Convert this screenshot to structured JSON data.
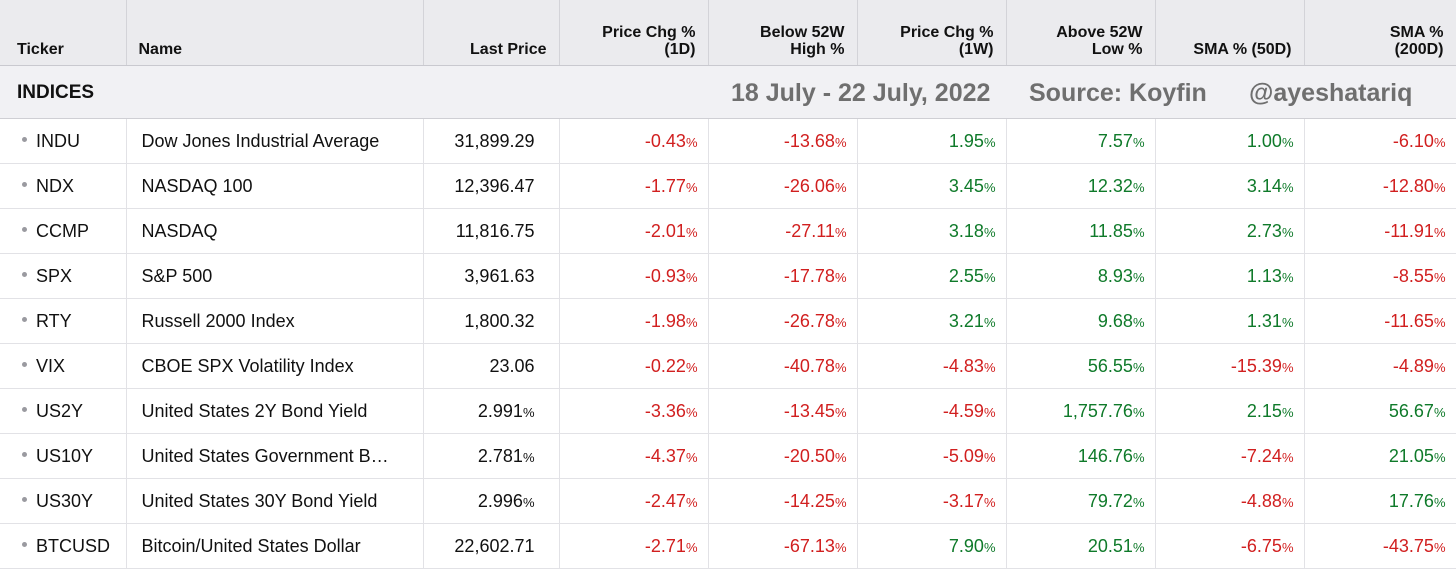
{
  "columns": [
    {
      "label": "Ticker",
      "align": "left"
    },
    {
      "label": "Name",
      "align": "left"
    },
    {
      "label": "Last Price",
      "align": "right"
    },
    {
      "label": "Price Chg %\n(1D)",
      "align": "right"
    },
    {
      "label": "Below 52W\nHigh %",
      "align": "right"
    },
    {
      "label": "Price Chg %\n(1W)",
      "align": "right"
    },
    {
      "label": "Above 52W\nLow %",
      "align": "right"
    },
    {
      "label": "SMA % (50D)",
      "align": "right"
    },
    {
      "label": "SMA %\n(200D)",
      "align": "right"
    }
  ],
  "section": {
    "title": "INDICES",
    "date_range": "18 July - 22 July, 2022",
    "source": "Source: Koyfin",
    "handle": "@ayeshatariq"
  },
  "colors": {
    "negative": "#d11f1f",
    "positive": "#0f7a2a"
  },
  "rows": [
    {
      "ticker": "INDU",
      "name": "Dow Jones Industrial Average",
      "price": "31,899.29",
      "price_unit": "",
      "values": [
        "-0.43",
        "-13.68",
        "1.95",
        "7.57",
        "1.00",
        "-6.10"
      ]
    },
    {
      "ticker": "NDX",
      "name": "NASDAQ 100",
      "price": "12,396.47",
      "price_unit": "",
      "values": [
        "-1.77",
        "-26.06",
        "3.45",
        "12.32",
        "3.14",
        "-12.80"
      ]
    },
    {
      "ticker": "CCMP",
      "name": "NASDAQ",
      "price": "11,816.75",
      "price_unit": "",
      "values": [
        "-2.01",
        "-27.11",
        "3.18",
        "11.85",
        "2.73",
        "-11.91"
      ]
    },
    {
      "ticker": "SPX",
      "name": "S&P 500",
      "price": "3,961.63",
      "price_unit": "",
      "values": [
        "-0.93",
        "-17.78",
        "2.55",
        "8.93",
        "1.13",
        "-8.55"
      ]
    },
    {
      "ticker": "RTY",
      "name": "Russell 2000 Index",
      "price": "1,800.32",
      "price_unit": "",
      "values": [
        "-1.98",
        "-26.78",
        "3.21",
        "9.68",
        "1.31",
        "-11.65"
      ]
    },
    {
      "ticker": "VIX",
      "name": "CBOE SPX Volatility Index",
      "price": "23.06",
      "price_unit": "",
      "values": [
        "-0.22",
        "-40.78",
        "-4.83",
        "56.55",
        "-15.39",
        "-4.89"
      ]
    },
    {
      "ticker": "US2Y",
      "name": "United States 2Y Bond Yield",
      "price": "2.991",
      "price_unit": "%",
      "values": [
        "-3.36",
        "-13.45",
        "-4.59",
        "1,757.76",
        "2.15",
        "56.67"
      ]
    },
    {
      "ticker": "US10Y",
      "name": "United States Government B…",
      "price": "2.781",
      "price_unit": "%",
      "values": [
        "-4.37",
        "-20.50",
        "-5.09",
        "146.76",
        "-7.24",
        "21.05"
      ]
    },
    {
      "ticker": "US30Y",
      "name": "United States 30Y Bond Yield",
      "price": "2.996",
      "price_unit": "%",
      "values": [
        "-2.47",
        "-14.25",
        "-3.17",
        "79.72",
        "-4.88",
        "17.76"
      ]
    },
    {
      "ticker": "BTCUSD",
      "name": "Bitcoin/United States Dollar",
      "price": "22,602.71",
      "price_unit": "",
      "values": [
        "-2.71",
        "-67.13",
        "7.90",
        "20.51",
        "-6.75",
        "-43.75"
      ]
    }
  ],
  "value_unit": "%"
}
